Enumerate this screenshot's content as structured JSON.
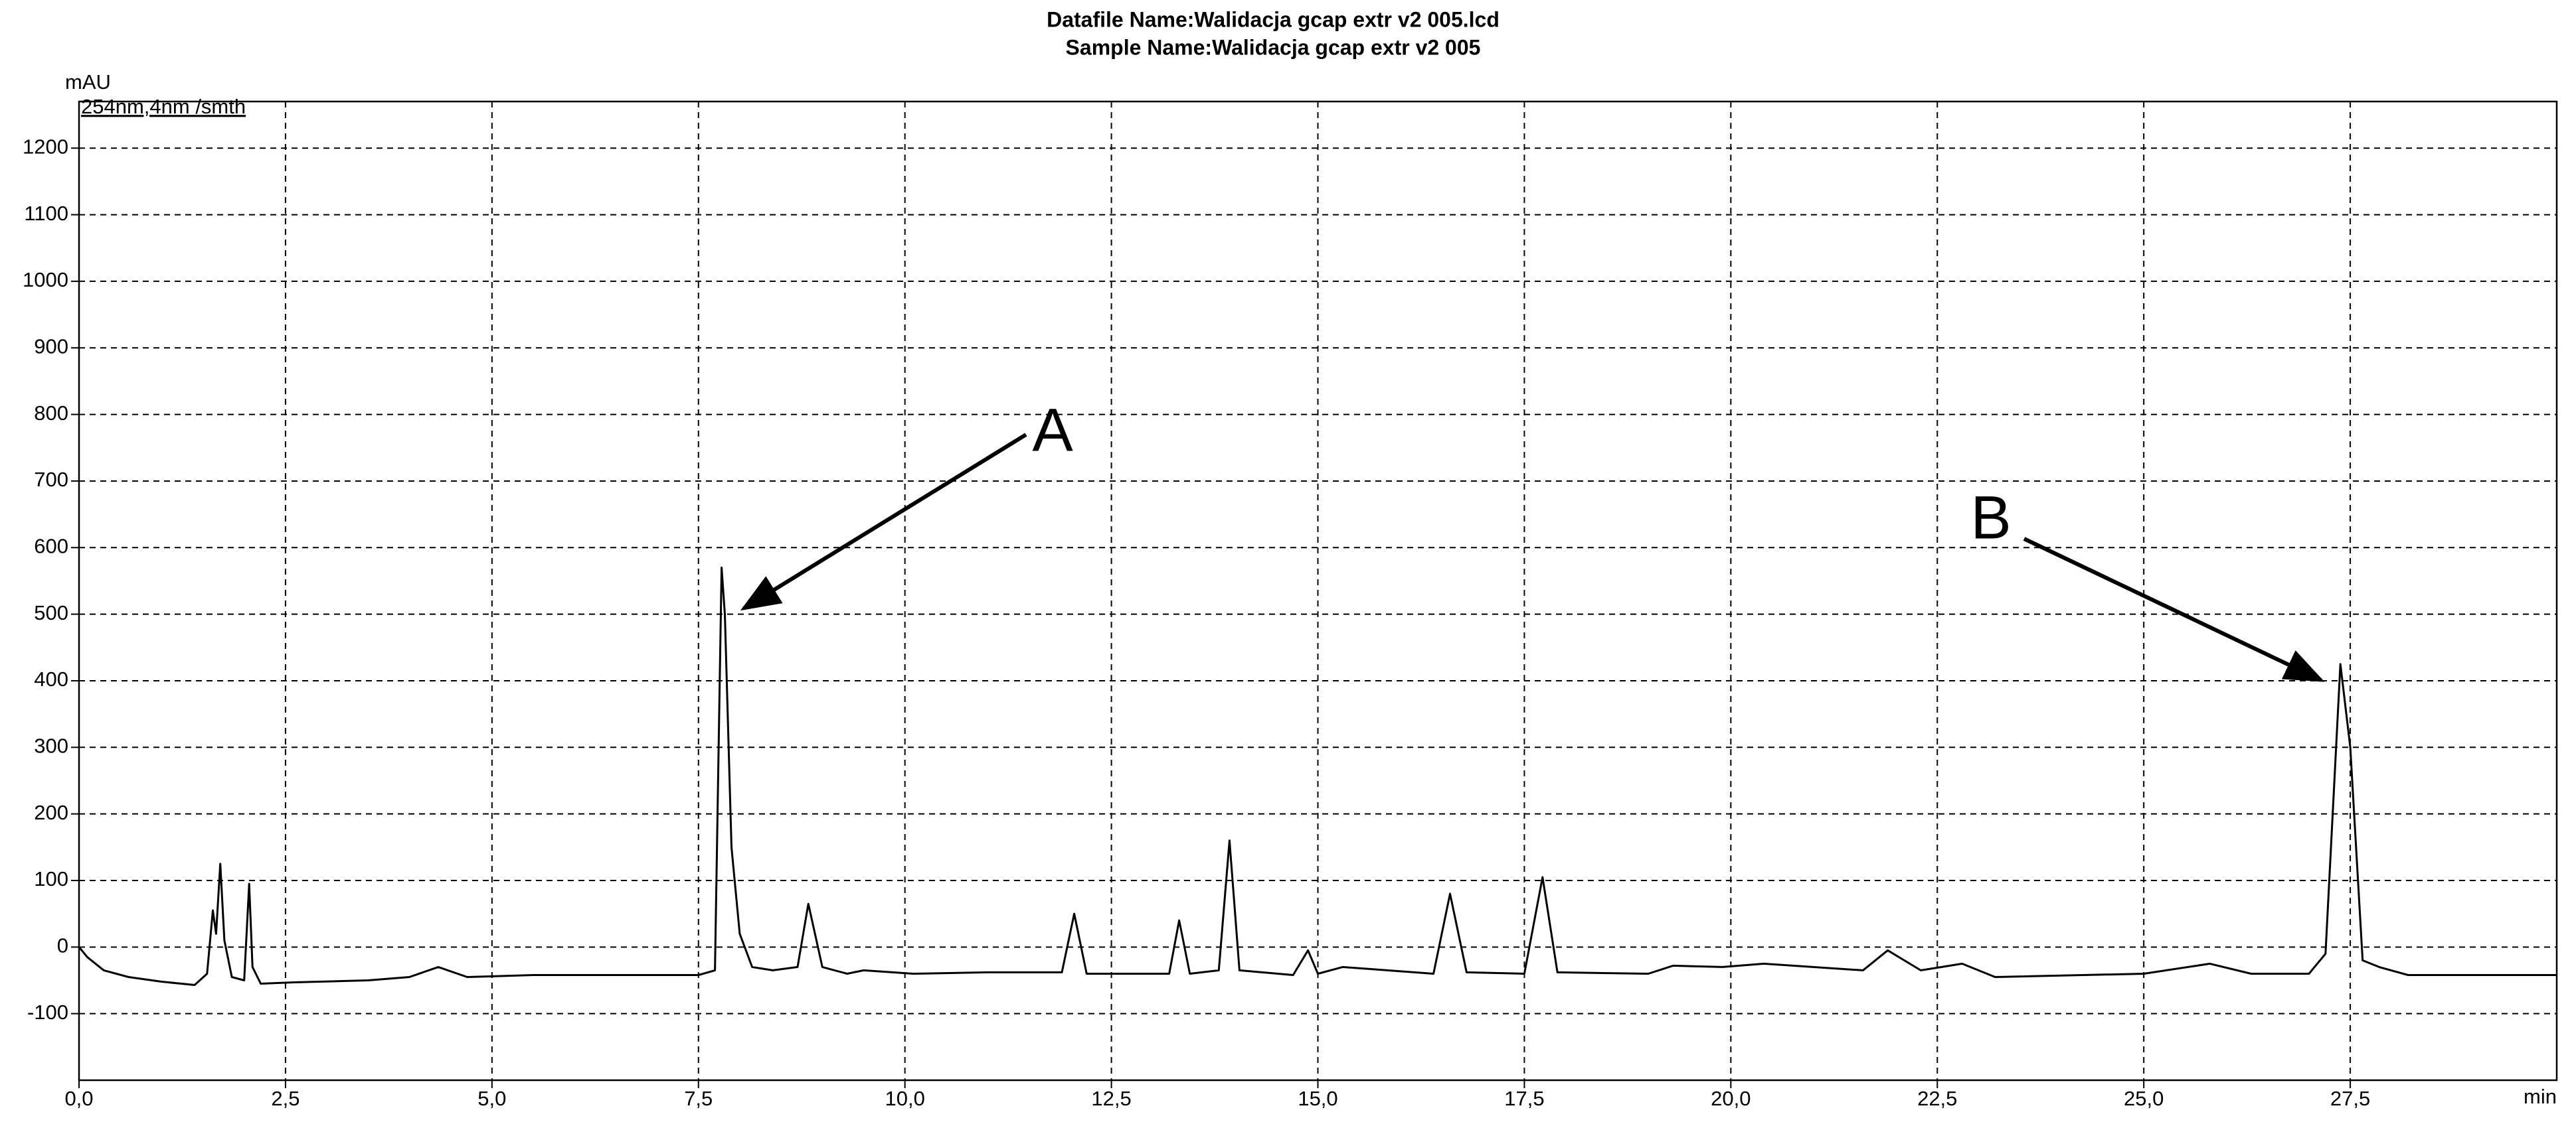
{
  "chart_data": {
    "type": "line",
    "title": "Datafile Name:Walidacja gcap extr v2 005.lcd",
    "subtitle": "Sample Name:Walidacja gcap extr v2 005",
    "y_label": "mAU",
    "x_label": "min",
    "annotations": [
      "A",
      "B"
    ],
    "grid": true,
    "xlim": [
      0,
      30
    ],
    "ylim": [
      -200,
      1270
    ],
    "xticks": [
      {
        "value": 0,
        "label": "0,0"
      },
      {
        "value": 2.5,
        "label": "2,5"
      },
      {
        "value": 5,
        "label": "5,0"
      },
      {
        "value": 7.5,
        "label": "7,5"
      },
      {
        "value": 10,
        "label": "10,0"
      },
      {
        "value": 12.5,
        "label": "12,5"
      },
      {
        "value": 15,
        "label": "15,0"
      },
      {
        "value": 17.5,
        "label": "17,5"
      },
      {
        "value": 20,
        "label": "20,0"
      },
      {
        "value": 22.5,
        "label": "22,5"
      },
      {
        "value": 25,
        "label": "25,0"
      },
      {
        "value": 27.5,
        "label": "27,5"
      }
    ],
    "yticks": [
      -100,
      0,
      100,
      200,
      300,
      400,
      500,
      600,
      700,
      800,
      900,
      1000,
      1100,
      1200
    ],
    "x": [
      0,
      0.1,
      0.3,
      0.6,
      1.0,
      1.4,
      1.55,
      1.62,
      1.66,
      1.71,
      1.76,
      1.85,
      2.0,
      2.06,
      2.1,
      2.2,
      2.6,
      3.5,
      4.0,
      4.35,
      4.7,
      5.5,
      6.5,
      7.5,
      7.7,
      7.78,
      7.82,
      7.9,
      8.0,
      8.15,
      8.4,
      8.7,
      8.83,
      9.0,
      9.3,
      9.5,
      10.1,
      11.0,
      11.9,
      12.05,
      12.2,
      13.2,
      13.32,
      13.45,
      13.8,
      13.93,
      14.05,
      14.7,
      14.88,
      15.0,
      15.3,
      16.4,
      16.6,
      16.8,
      17.5,
      17.72,
      17.9,
      19.0,
      19.3,
      19.9,
      20.4,
      21.6,
      21.9,
      22.3,
      22.8,
      23.2,
      25.0,
      25.8,
      26.3,
      27.0,
      27.2,
      27.38,
      27.5,
      27.65,
      27.85,
      28.2,
      30.0
    ],
    "series": [
      {
        "name": "254nm,4nm /smth",
        "color": "#000000",
        "values": [
          0,
          -15,
          -35,
          -45,
          -52,
          -57,
          -40,
          55,
          20,
          125,
          10,
          -45,
          -50,
          95,
          -30,
          -55,
          -53,
          -50,
          -45,
          -30,
          -45,
          -42,
          -42,
          -42,
          -35,
          570,
          500,
          150,
          20,
          -30,
          -35,
          -30,
          65,
          -30,
          -40,
          -35,
          -40,
          -38,
          -38,
          50,
          -40,
          -40,
          40,
          -40,
          -35,
          160,
          -35,
          -42,
          -5,
          -40,
          -30,
          -40,
          80,
          -38,
          -40,
          105,
          -38,
          -40,
          -28,
          -30,
          -25,
          -35,
          -5,
          -35,
          -25,
          -45,
          -40,
          -25,
          -40,
          -40,
          -10,
          425,
          300,
          -20,
          -30,
          -42,
          -42
        ]
      }
    ]
  }
}
